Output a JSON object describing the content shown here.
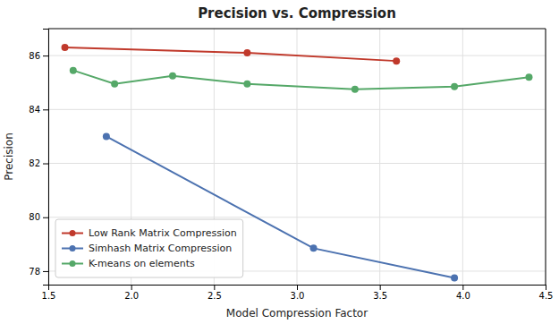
{
  "chart_data": {
    "type": "line",
    "title": "Precision vs. Compression",
    "x_label": "Model Compression Factor",
    "y_label": "Precision",
    "series": [
      {
        "name": "Low Rank Matrix Compression",
        "color": "#c0392b",
        "x": [
          1.6,
          2.7,
          3.6
        ],
        "values": [
          86.3,
          86.1,
          85.8
        ]
      },
      {
        "name": "Simhash Matrix Compression",
        "color": "#4c72b0",
        "x": [
          1.85,
          3.1,
          3.95
        ],
        "values": [
          83.0,
          78.85,
          77.75
        ]
      },
      {
        "name": "K-means on elements",
        "color": "#55a868",
        "x": [
          1.65,
          1.9,
          2.25,
          2.7,
          3.35,
          3.95,
          4.4
        ],
        "values": [
          85.45,
          84.95,
          85.25,
          84.95,
          84.75,
          84.85,
          85.2
        ]
      }
    ],
    "xlim": [
      1.5,
      4.5
    ],
    "ylim": [
      77.5,
      87.0
    ],
    "xticks": [
      1.5,
      {
        "value": 2.0,
        "label": "2.0"
      },
      2.5,
      {
        "value": 3.0,
        "label": "3.0"
      },
      3.5,
      {
        "value": 4.0,
        "label": "4.0"
      },
      4.5
    ],
    "yticks": [
      78,
      80,
      82,
      84,
      86
    ],
    "grid": true,
    "legend": "lower left",
    "marker": "circle"
  }
}
